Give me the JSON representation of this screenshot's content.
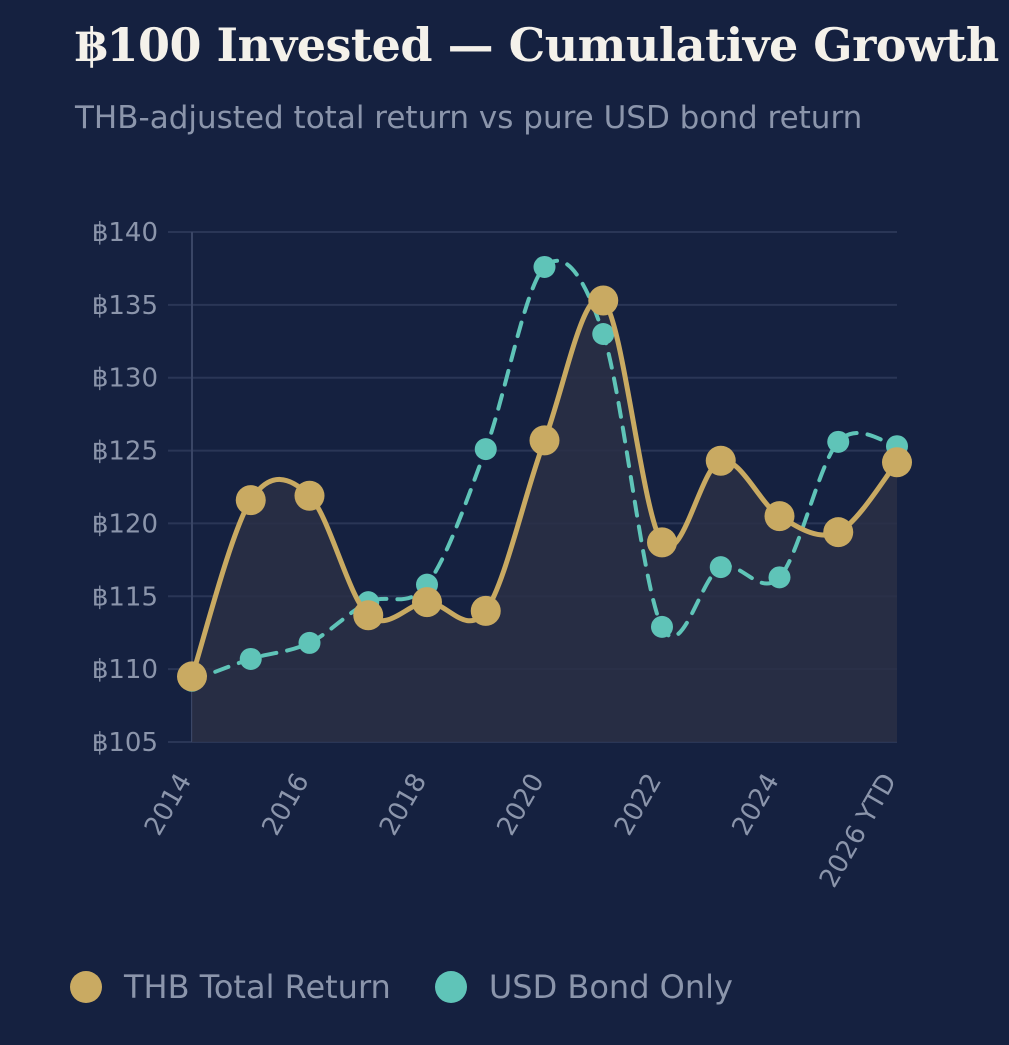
{
  "colors": {
    "background": "#152140",
    "thb": "#c9aa62",
    "usd": "#5fc4b8",
    "grid": "#2a3656",
    "axis": "#3a4666",
    "text_muted": "#8b95ab",
    "area_fill": "#2a2f45"
  },
  "chart_data": {
    "type": "line",
    "title": "฿100 Invested — Cumulative Growth",
    "subtitle": "THB-adjusted total return vs pure USD bond return",
    "x": [
      "2014",
      "2015",
      "2016",
      "2017",
      "2018",
      "2019",
      "2020",
      "2021",
      "2022",
      "2023",
      "2024",
      "2025",
      "2026 YTD"
    ],
    "x_tick_labels": [
      "2014",
      "2016",
      "2018",
      "2020",
      "2022",
      "2024",
      "2026 YTD"
    ],
    "y_tick_labels": [
      "฿105",
      "฿110",
      "฿115",
      "฿120",
      "฿125",
      "฿130",
      "฿135",
      "฿140"
    ],
    "y_ticks": [
      105,
      110,
      115,
      120,
      125,
      130,
      135,
      140
    ],
    "ylim": [
      105,
      140
    ],
    "grid": true,
    "legend_position": "bottom-left",
    "series": [
      {
        "name": "THB Total Return",
        "key": "thb",
        "style": "solid",
        "area": true,
        "values": [
          109.5,
          121.6,
          121.9,
          113.7,
          114.6,
          114.0,
          125.7,
          135.3,
          118.7,
          124.3,
          120.5,
          119.4,
          124.2
        ]
      },
      {
        "name": "USD Bond Only",
        "key": "usd",
        "style": "dashed",
        "area": false,
        "values": [
          109.2,
          110.7,
          111.8,
          114.6,
          115.8,
          125.1,
          137.6,
          133.0,
          112.9,
          117.0,
          116.3,
          125.6,
          125.3
        ]
      }
    ]
  },
  "legend": {
    "items": [
      {
        "label": "THB Total Return"
      },
      {
        "label": "USD Bond Only"
      }
    ]
  }
}
